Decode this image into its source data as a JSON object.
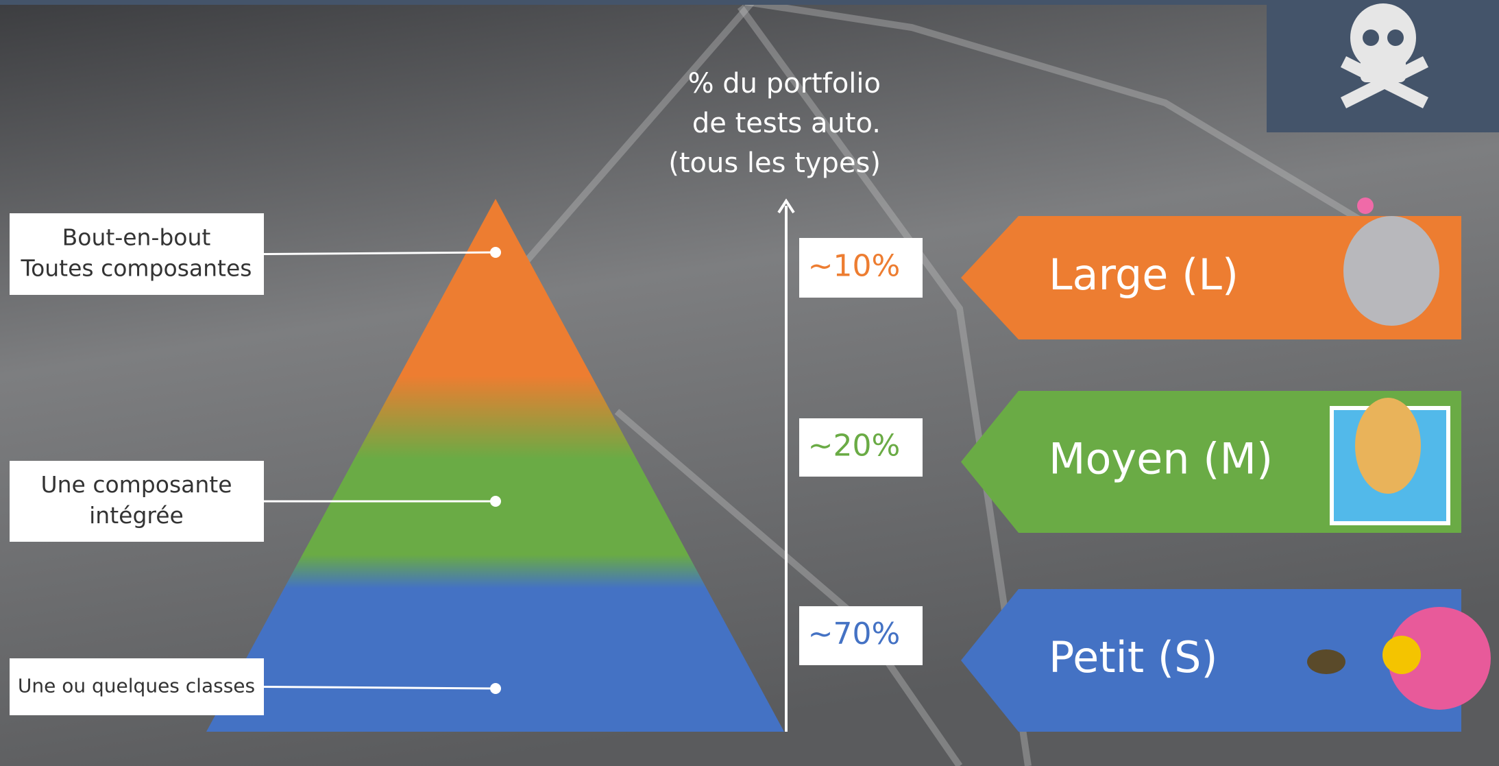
{
  "axis_label": [
    "% du portfolio",
    "de tests auto.",
    "(tous les types)"
  ],
  "levels": [
    {
      "description": [
        "Bout-en-bout",
        "Toutes composantes"
      ],
      "share": "~10%",
      "size": "Large (L)",
      "color": "#ed7d31"
    },
    {
      "description": [
        "Une composante",
        "intégrée"
      ],
      "share": "~20%",
      "size": "Moyen (M)",
      "color": "#6aab45"
    },
    {
      "description": [
        "Une ou quelques classes"
      ],
      "share": "~70%",
      "size": "Petit (S)",
      "color": "#4472c4"
    }
  ]
}
